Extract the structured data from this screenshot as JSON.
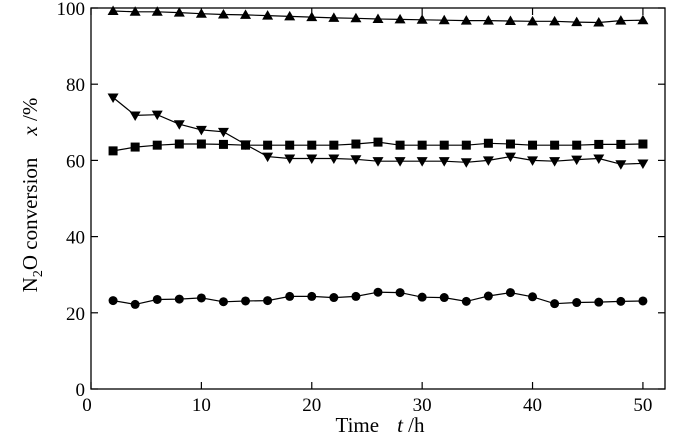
{
  "chart_data": {
    "type": "scatter",
    "xlabel": {
      "text": "Time",
      "symbol": "t",
      "unit": " /h"
    },
    "ylabel": {
      "prefix": "N",
      "subscript": "2",
      "suffix": "O conversion",
      "symbol": "x",
      "unit": " /%"
    },
    "xlim": [
      0,
      52
    ],
    "ylim": [
      0,
      100
    ],
    "xticks": [
      0,
      10,
      20,
      30,
      40,
      50
    ],
    "yticks": [
      0,
      20,
      40,
      60,
      80,
      100
    ],
    "x": [
      2,
      4,
      6,
      8,
      10,
      12,
      14,
      16,
      18,
      20,
      22,
      24,
      26,
      28,
      30,
      32,
      34,
      36,
      38,
      40,
      42,
      44,
      46,
      48,
      50
    ],
    "series": [
      {
        "marker": "triangle-up",
        "values": [
          99.2,
          99.0,
          99.0,
          98.8,
          98.5,
          98.3,
          98.2,
          98.0,
          97.8,
          97.6,
          97.4,
          97.3,
          97.1,
          97.0,
          96.9,
          96.8,
          96.7,
          96.7,
          96.6,
          96.5,
          96.5,
          96.3,
          96.2,
          96.7,
          96.8
        ]
      },
      {
        "marker": "triangle-down",
        "values": [
          76.5,
          71.8,
          72.0,
          69.5,
          68.0,
          67.5,
          64.2,
          61.0,
          60.5,
          60.5,
          60.5,
          60.3,
          59.8,
          59.8,
          59.8,
          59.8,
          59.5,
          60.0,
          61.0,
          60.0,
          59.8,
          60.2,
          60.5,
          59.0,
          59.2
        ]
      },
      {
        "marker": "square",
        "values": [
          62.5,
          63.5,
          64.0,
          64.3,
          64.3,
          64.2,
          64.0,
          64.0,
          64.0,
          64.0,
          64.0,
          64.3,
          64.8,
          64.0,
          64.0,
          64.0,
          64.0,
          64.5,
          64.3,
          64.0,
          64.0,
          64.0,
          64.2,
          64.2,
          64.3
        ]
      },
      {
        "marker": "circle",
        "values": [
          23.2,
          22.2,
          23.5,
          23.6,
          23.9,
          22.9,
          23.1,
          23.2,
          24.3,
          24.3,
          24.0,
          24.3,
          25.4,
          25.3,
          24.1,
          24.0,
          23.0,
          24.4,
          25.3,
          24.2,
          22.4,
          22.7,
          22.8,
          23.0,
          23.1
        ]
      }
    ]
  },
  "colors": {
    "ink": "#000000",
    "background": "#ffffff"
  }
}
